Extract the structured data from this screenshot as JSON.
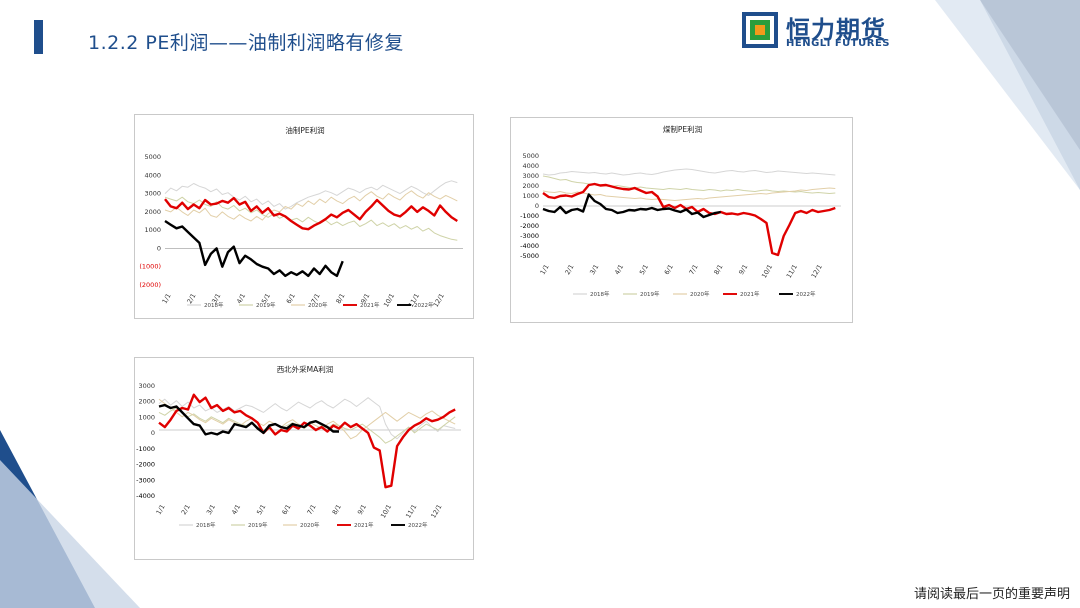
{
  "header": {
    "title": "1.2.2 PE利润——油制利润略有修复"
  },
  "logo": {
    "name_cn": "恒力期货",
    "name_en": "HENGLI FUTURES"
  },
  "footer": {
    "disclaimer": "请阅读最后一页的重要声明"
  },
  "colors": {
    "brand_blue": "#1f4e8c",
    "series_2018": "#d6d6d6",
    "series_2019": "#cfd3a8",
    "series_2020": "#e2cfa8",
    "series_2021": "#e00000",
    "series_2022": "#000000"
  },
  "chart_data": [
    {
      "type": "line",
      "title": "油制PE利润",
      "x_ticks": [
        "1/1",
        "2/1",
        "3/1",
        "4/1",
        "5/1",
        "6/1",
        "7/1",
        "8/1",
        "9/1",
        "10/1",
        "11/1",
        "12/1"
      ],
      "y_ticks": [
        "5000",
        "4000",
        "3000",
        "2000",
        "1000",
        "0",
        "(1000)",
        "(2000)"
      ],
      "ylim": [
        -2000,
        5000
      ],
      "neg_tick_color": "#e00000",
      "legend": "bottom",
      "series": [
        {
          "name": "2018年",
          "color": "#d6d6d6",
          "width": 1,
          "weeks": 52,
          "values": [
            3000,
            3300,
            3150,
            3400,
            3350,
            3550,
            3400,
            3300,
            3100,
            3250,
            2950,
            3050,
            2800,
            2650,
            2850,
            2550,
            2700,
            2400,
            2600,
            2300,
            2450,
            2150,
            2300,
            2500,
            2650,
            2800,
            2900,
            3000,
            3150,
            3050,
            2900,
            3100,
            3300,
            3200,
            3050,
            3250,
            3350,
            3200,
            3450,
            3300,
            3150,
            3000,
            3200,
            3400,
            3250,
            3050,
            2900,
            3150,
            3400,
            3600,
            3700,
            3600
          ]
        },
        {
          "name": "2019年",
          "color": "#cfd3a8",
          "width": 1,
          "weeks": 52,
          "values": [
            2800,
            2700,
            2600,
            2800,
            2550,
            2450,
            2650,
            2400,
            2300,
            2550,
            2250,
            2150,
            2350,
            2050,
            2200,
            1950,
            2100,
            1850,
            1700,
            1900,
            1650,
            1800,
            1550,
            1650,
            1450,
            1700,
            1500,
            1350,
            1550,
            1300,
            1450,
            1250,
            1400,
            1500,
            1200,
            1350,
            1550,
            1250,
            1400,
            1200,
            1350,
            1100,
            1250,
            1050,
            1200,
            950,
            1100,
            850,
            700,
            600,
            500,
            450
          ]
        },
        {
          "name": "2020年",
          "color": "#e2cfa8",
          "width": 1,
          "weeks": 52,
          "values": [
            2100,
            2000,
            2250,
            2000,
            1800,
            2100,
            1950,
            2200,
            1800,
            1700,
            2000,
            1750,
            1600,
            1850,
            1650,
            1500,
            1750,
            1550,
            1900,
            2100,
            2000,
            2300,
            2150,
            2450,
            2300,
            2600,
            2400,
            2700,
            2500,
            2800,
            2600,
            2450,
            2700,
            2850,
            2600,
            2900,
            3100,
            2850,
            2700,
            3000,
            2800,
            2650,
            2950,
            3150,
            2900,
            2750,
            3050,
            2850,
            2700,
            2900,
            2750,
            2600
          ]
        },
        {
          "name": "2021年",
          "color": "#e00000",
          "width": 2.4,
          "weeks": 52,
          "values": [
            2700,
            2300,
            2200,
            2500,
            2150,
            2400,
            2200,
            2650,
            2400,
            2450,
            2600,
            2500,
            2750,
            2400,
            2550,
            2050,
            2300,
            1950,
            2200,
            1800,
            1900,
            1750,
            1500,
            1300,
            1100,
            1050,
            1250,
            1400,
            1600,
            1850,
            1700,
            1950,
            2100,
            1850,
            1600,
            2000,
            2300,
            2650,
            2350,
            2050,
            1850,
            1750,
            2000,
            2300,
            2000,
            2250,
            2050,
            1800,
            2350,
            2000,
            1700,
            1500
          ]
        },
        {
          "name": "2022年",
          "color": "#000000",
          "width": 2.4,
          "weeks": 32,
          "values": [
            1500,
            1300,
            1100,
            1200,
            900,
            600,
            300,
            -900,
            -300,
            0,
            -1000,
            -200,
            100,
            -800,
            -400,
            -600,
            -850,
            -1000,
            -1100,
            -1400,
            -1200,
            -1500,
            -1300,
            -1450,
            -1250,
            -1500,
            -1100,
            -1400,
            -950,
            -1300,
            -1500,
            -700
          ]
        }
      ]
    },
    {
      "type": "line",
      "title": "煤制PE利润",
      "x_ticks": [
        "1/1",
        "2/1",
        "3/1",
        "4/1",
        "5/1",
        "6/1",
        "7/1",
        "8/1",
        "9/1",
        "10/1",
        "11/1",
        "12/1"
      ],
      "y_ticks": [
        "5000",
        "4000",
        "3000",
        "2000",
        "1000",
        "0",
        "-1000",
        "-2000",
        "-3000",
        "-4000",
        "-5000"
      ],
      "ylim": [
        -5000,
        5000
      ],
      "neg_tick_color": "#000000",
      "legend": "bottom",
      "series": [
        {
          "name": "2018年",
          "color": "#d6d6d6",
          "width": 1,
          "weeks": 52,
          "values": [
            3200,
            3100,
            3150,
            3300,
            3350,
            3450,
            3400,
            3350,
            3300,
            3350,
            3250,
            3200,
            3300,
            3200,
            3100,
            3150,
            3250,
            3300,
            3200,
            3150,
            3250,
            3400,
            3500,
            3600,
            3650,
            3700,
            3650,
            3550,
            3450,
            3350,
            3300,
            3400,
            3500,
            3550,
            3450,
            3400,
            3500,
            3550,
            3450,
            3350,
            3400,
            3500,
            3450,
            3400,
            3350,
            3300,
            3250,
            3300,
            3250,
            3200,
            3150,
            3100
          ]
        },
        {
          "name": "2019年",
          "color": "#cfd3a8",
          "width": 1,
          "weeks": 52,
          "values": [
            3000,
            2900,
            2750,
            2600,
            2650,
            2450,
            2350,
            2300,
            2200,
            2150,
            2100,
            2000,
            1950,
            2050,
            1950,
            1850,
            1800,
            1900,
            1800,
            1750,
            1700,
            1650,
            1750,
            1700,
            1650,
            1750,
            1650,
            1600,
            1550,
            1650,
            1600,
            1500,
            1600,
            1550,
            1650,
            1550,
            1500,
            1450,
            1550,
            1600,
            1500,
            1450,
            1500,
            1450,
            1400,
            1450,
            1350,
            1300,
            1350,
            1300,
            1250,
            1300
          ]
        },
        {
          "name": "2020年",
          "color": "#e2cfa8",
          "width": 1,
          "weeks": 52,
          "values": [
            1500,
            1400,
            1350,
            1450,
            1300,
            1250,
            1400,
            1300,
            1200,
            1100,
            1150,
            1000,
            950,
            900,
            850,
            800,
            750,
            800,
            700,
            650,
            700,
            650,
            600,
            550,
            600,
            650,
            700,
            750,
            700,
            800,
            850,
            900,
            950,
            1000,
            1050,
            1100,
            1150,
            1200,
            1250,
            1200,
            1300,
            1350,
            1400,
            1450,
            1500,
            1600,
            1550,
            1650,
            1700,
            1750,
            1800,
            1750
          ]
        },
        {
          "name": "2021年",
          "color": "#e00000",
          "width": 2.4,
          "weeks": 52,
          "values": [
            1300,
            900,
            800,
            1000,
            1050,
            950,
            1200,
            1400,
            2100,
            2200,
            2050,
            2100,
            1950,
            1800,
            1700,
            1650,
            1800,
            1550,
            1300,
            1400,
            950,
            -100,
            100,
            -200,
            100,
            -300,
            -100,
            -600,
            -300,
            -700,
            -800,
            -600,
            -800,
            -750,
            -850,
            -700,
            -800,
            -950,
            -1300,
            -1700,
            -4700,
            -4900,
            -3000,
            -1900,
            -700,
            -500,
            -700,
            -400,
            -600,
            -500,
            -400,
            -200
          ]
        },
        {
          "name": "2022年",
          "color": "#000000",
          "width": 2.4,
          "weeks": 32,
          "values": [
            -300,
            -500,
            -600,
            -100,
            -700,
            -400,
            -300,
            -550,
            1150,
            500,
            200,
            -300,
            -400,
            -700,
            -600,
            -400,
            -450,
            -300,
            -350,
            -200,
            -400,
            -300,
            -250,
            -450,
            -600,
            -350,
            -800,
            -650,
            -1100,
            -900,
            -700,
            -600
          ]
        }
      ]
    },
    {
      "type": "line",
      "title": "西北外采MA利润",
      "x_ticks": [
        "1/1",
        "2/1",
        "3/1",
        "4/1",
        "5/1",
        "6/1",
        "7/1",
        "8/1",
        "9/1",
        "10/1",
        "11/1",
        "12/1"
      ],
      "y_ticks": [
        "3000",
        "2000",
        "1000",
        "0",
        "-1000",
        "-2000",
        "-3000",
        "-4000"
      ],
      "ylim": [
        -4500,
        3000
      ],
      "neg_tick_color": "#000000",
      "legend": "bottom",
      "series": [
        {
          "name": "2018年",
          "color": "#d6d6d6",
          "width": 1,
          "weeks": 52,
          "values": [
            1800,
            2100,
            1700,
            2000,
            1600,
            1900,
            1500,
            1700,
            1300,
            1500,
            1200,
            1400,
            1600,
            1300,
            1500,
            1700,
            1600,
            1400,
            1200,
            1500,
            1800,
            1500,
            1300,
            1600,
            1900,
            1700,
            1500,
            1800,
            2000,
            1700,
            1500,
            1800,
            2100,
            1900,
            1600,
            1900,
            2200,
            1900,
            1600,
            400,
            -300,
            -600,
            -200,
            200,
            -100,
            300,
            600,
            200,
            -100,
            300,
            200,
            100
          ]
        },
        {
          "name": "2019年",
          "color": "#cfd3a8",
          "width": 1,
          "weeks": 52,
          "values": [
            1200,
            1000,
            1300,
            1500,
            1200,
            900,
            1100,
            800,
            600,
            900,
            700,
            500,
            800,
            600,
            400,
            300,
            500,
            200,
            0,
            200,
            400,
            100,
            300,
            500,
            300,
            100,
            400,
            600,
            300,
            100,
            400,
            300,
            100,
            0,
            200,
            400,
            100,
            -200,
            -500,
            -900,
            -700,
            -400,
            -100,
            200,
            -200,
            100,
            400,
            200,
            0,
            300,
            600,
            900
          ]
        },
        {
          "name": "2020年",
          "color": "#e2cfa8",
          "width": 1,
          "weeks": 52,
          "values": [
            2100,
            1800,
            1500,
            1200,
            900,
            1200,
            1000,
            700,
            500,
            800,
            600,
            400,
            700,
            500,
            300,
            600,
            800,
            500,
            300,
            600,
            400,
            200,
            500,
            700,
            400,
            200,
            500,
            300,
            100,
            400,
            600,
            300,
            -100,
            -600,
            -400,
            0,
            300,
            600,
            900,
            1200,
            900,
            600,
            900,
            1200,
            1000,
            800,
            1100,
            1300,
            1000,
            800,
            600,
            400
          ]
        },
        {
          "name": "2021年",
          "color": "#e00000",
          "width": 2.4,
          "weeks": 52,
          "values": [
            500,
            200,
            700,
            1300,
            1500,
            1400,
            2400,
            1900,
            2200,
            1500,
            1700,
            1300,
            1500,
            1200,
            1300,
            1000,
            800,
            500,
            -200,
            200,
            -300,
            0,
            -100,
            300,
            100,
            500,
            300,
            0,
            200,
            -100,
            300,
            100,
            500,
            200,
            400,
            100,
            -200,
            -1200,
            -1400,
            -3900,
            -3800,
            -1100,
            -500,
            0,
            300,
            500,
            800,
            600,
            700,
            900,
            1200,
            1400
          ]
        },
        {
          "name": "2022年",
          "color": "#000000",
          "width": 2.4,
          "weeks": 32,
          "values": [
            1600,
            1700,
            1500,
            1600,
            1200,
            800,
            400,
            300,
            -300,
            -200,
            -300,
            -100,
            -200,
            400,
            300,
            200,
            500,
            100,
            -200,
            300,
            400,
            200,
            100,
            400,
            300,
            200,
            500,
            600,
            400,
            200,
            -100,
            -100
          ]
        }
      ]
    }
  ]
}
